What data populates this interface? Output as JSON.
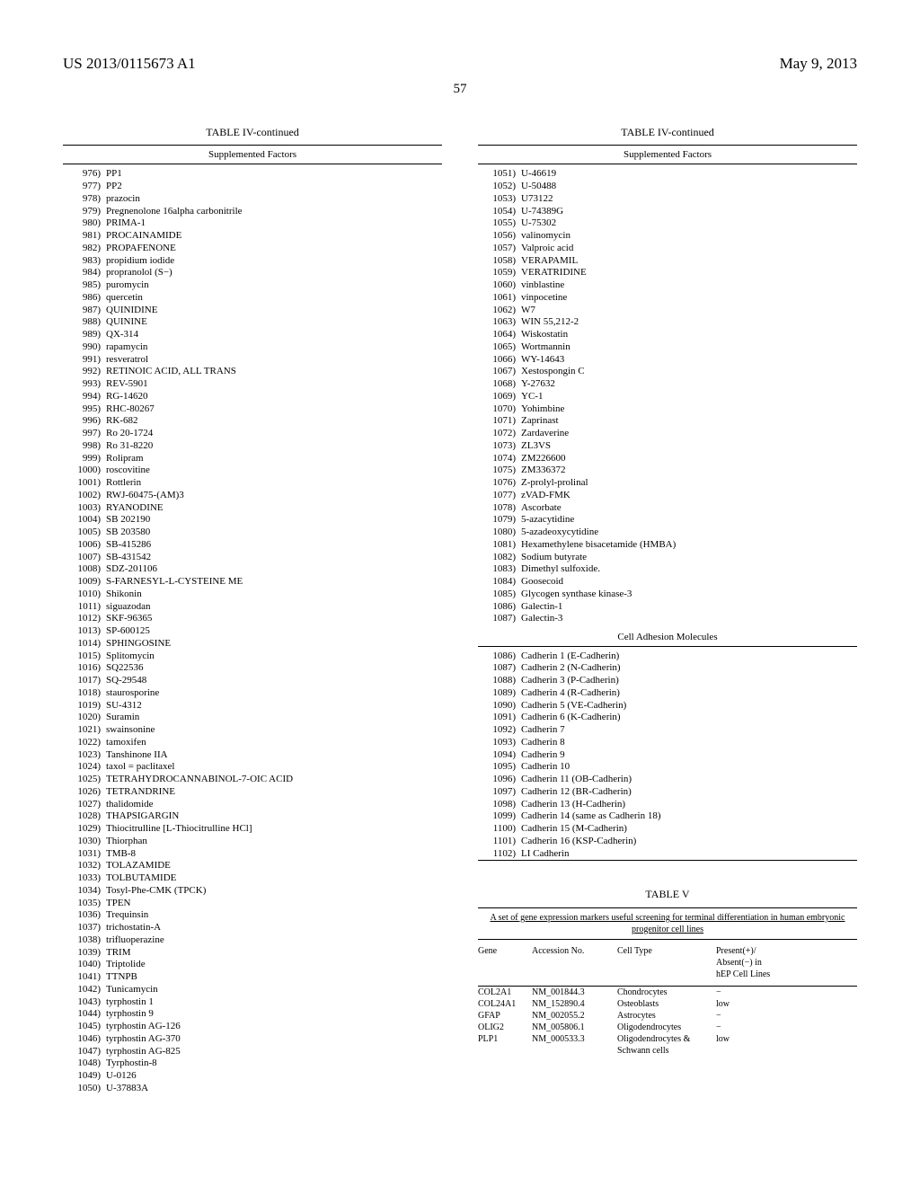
{
  "header": {
    "patent_no": "US 2013/0115673 A1",
    "date": "May 9, 2013",
    "page": "57"
  },
  "table4": {
    "title": "TABLE IV-continued",
    "subtitle": "Supplemented Factors",
    "subsection": "Cell Adhesion Molecules",
    "left": [
      {
        "n": "976)",
        "t": "PP1"
      },
      {
        "n": "977)",
        "t": "PP2"
      },
      {
        "n": "978)",
        "t": "prazocin"
      },
      {
        "n": "979)",
        "t": "Pregnenolone 16alpha carbonitrile"
      },
      {
        "n": "980)",
        "t": "PRIMA-1"
      },
      {
        "n": "981)",
        "t": "PROCAINAMIDE"
      },
      {
        "n": "982)",
        "t": "PROPAFENONE"
      },
      {
        "n": "983)",
        "t": "propidium iodide"
      },
      {
        "n": "984)",
        "t": "propranolol (S−)"
      },
      {
        "n": "985)",
        "t": "puromycin"
      },
      {
        "n": "986)",
        "t": "quercetin"
      },
      {
        "n": "987)",
        "t": "QUINIDINE"
      },
      {
        "n": "988)",
        "t": "QUININE"
      },
      {
        "n": "989)",
        "t": "QX-314"
      },
      {
        "n": "990)",
        "t": "rapamycin"
      },
      {
        "n": "991)",
        "t": "resveratrol"
      },
      {
        "n": "992)",
        "t": "RETINOIC ACID, ALL TRANS"
      },
      {
        "n": "993)",
        "t": "REV-5901"
      },
      {
        "n": "994)",
        "t": "RG-14620"
      },
      {
        "n": "995)",
        "t": "RHC-80267"
      },
      {
        "n": "996)",
        "t": "RK-682"
      },
      {
        "n": "997)",
        "t": "Ro 20-1724"
      },
      {
        "n": "998)",
        "t": "Ro 31-8220"
      },
      {
        "n": "999)",
        "t": "Rolipram"
      },
      {
        "n": "1000)",
        "t": "roscovitine"
      },
      {
        "n": "1001)",
        "t": "Rottlerin"
      },
      {
        "n": "1002)",
        "t": "RWJ-60475-(AM)3"
      },
      {
        "n": "1003)",
        "t": "RYANODINE"
      },
      {
        "n": "1004)",
        "t": "SB 202190"
      },
      {
        "n": "1005)",
        "t": "SB 203580"
      },
      {
        "n": "1006)",
        "t": "SB-415286"
      },
      {
        "n": "1007)",
        "t": "SB-431542"
      },
      {
        "n": "1008)",
        "t": "SDZ-201106"
      },
      {
        "n": "1009)",
        "t": "S-FARNESYL-L-CYSTEINE ME"
      },
      {
        "n": "1010)",
        "t": "Shikonin"
      },
      {
        "n": "1011)",
        "t": "siguazodan"
      },
      {
        "n": "1012)",
        "t": "SKF-96365"
      },
      {
        "n": "1013)",
        "t": "SP-600125"
      },
      {
        "n": "1014)",
        "t": "SPHINGOSINE"
      },
      {
        "n": "1015)",
        "t": "Splitomycin"
      },
      {
        "n": "1016)",
        "t": "SQ22536"
      },
      {
        "n": "1017)",
        "t": "SQ-29548"
      },
      {
        "n": "1018)",
        "t": "staurosporine"
      },
      {
        "n": "1019)",
        "t": "SU-4312"
      },
      {
        "n": "1020)",
        "t": "Suramin"
      },
      {
        "n": "1021)",
        "t": "swainsonine"
      },
      {
        "n": "1022)",
        "t": "tamoxifen"
      },
      {
        "n": "1023)",
        "t": "Tanshinone IIA"
      },
      {
        "n": "1024)",
        "t": "taxol = paclitaxel"
      },
      {
        "n": "1025)",
        "t": "TETRAHYDROCANNABINOL-7-OIC ACID"
      },
      {
        "n": "1026)",
        "t": "TETRANDRINE"
      },
      {
        "n": "1027)",
        "t": "thalidomide"
      },
      {
        "n": "1028)",
        "t": "THAPSIGARGIN"
      },
      {
        "n": "1029)",
        "t": "Thiocitrulline [L-Thiocitrulline HCl]"
      },
      {
        "n": "1030)",
        "t": "Thiorphan"
      },
      {
        "n": "1031)",
        "t": "TMB-8"
      },
      {
        "n": "1032)",
        "t": "TOLAZAMIDE"
      },
      {
        "n": "1033)",
        "t": "TOLBUTAMIDE"
      },
      {
        "n": "1034)",
        "t": "Tosyl-Phe-CMK (TPCK)"
      },
      {
        "n": "1035)",
        "t": "TPEN"
      },
      {
        "n": "1036)",
        "t": "Trequinsin"
      },
      {
        "n": "1037)",
        "t": "trichostatin-A"
      },
      {
        "n": "1038)",
        "t": "trifluoperazine"
      },
      {
        "n": "1039)",
        "t": "TRIM"
      },
      {
        "n": "1040)",
        "t": "Triptolide"
      },
      {
        "n": "1041)",
        "t": "TTNPB"
      },
      {
        "n": "1042)",
        "t": "Tunicamycin"
      },
      {
        "n": "1043)",
        "t": "tyrphostin 1"
      },
      {
        "n": "1044)",
        "t": "tyrphostin 9"
      },
      {
        "n": "1045)",
        "t": "tyrphostin AG-126"
      },
      {
        "n": "1046)",
        "t": "tyrphostin AG-370"
      },
      {
        "n": "1047)",
        "t": "tyrphostin AG-825"
      },
      {
        "n": "1048)",
        "t": "Tyrphostin-8"
      },
      {
        "n": "1049)",
        "t": "U-0126"
      },
      {
        "n": "1050)",
        "t": "U-37883A"
      }
    ],
    "right_a": [
      {
        "n": "1051)",
        "t": "U-46619"
      },
      {
        "n": "1052)",
        "t": "U-50488"
      },
      {
        "n": "1053)",
        "t": "U73122"
      },
      {
        "n": "1054)",
        "t": "U-74389G"
      },
      {
        "n": "1055)",
        "t": "U-75302"
      },
      {
        "n": "1056)",
        "t": "valinomycin"
      },
      {
        "n": "1057)",
        "t": "Valproic acid"
      },
      {
        "n": "1058)",
        "t": "VERAPAMIL"
      },
      {
        "n": "1059)",
        "t": "VERATRIDINE"
      },
      {
        "n": "1060)",
        "t": "vinblastine"
      },
      {
        "n": "1061)",
        "t": "vinpocetine"
      },
      {
        "n": "1062)",
        "t": "W7"
      },
      {
        "n": "1063)",
        "t": "WIN 55,212-2"
      },
      {
        "n": "1064)",
        "t": "Wiskostatin"
      },
      {
        "n": "1065)",
        "t": "Wortmannin"
      },
      {
        "n": "1066)",
        "t": "WY-14643"
      },
      {
        "n": "1067)",
        "t": "Xestospongin C"
      },
      {
        "n": "1068)",
        "t": "Y-27632"
      },
      {
        "n": "1069)",
        "t": "YC-1"
      },
      {
        "n": "1070)",
        "t": "Yohimbine"
      },
      {
        "n": "1071)",
        "t": "Zaprinast"
      },
      {
        "n": "1072)",
        "t": "Zardaverine"
      },
      {
        "n": "1073)",
        "t": "ZL3VS"
      },
      {
        "n": "1074)",
        "t": "ZM226600"
      },
      {
        "n": "1075)",
        "t": "ZM336372"
      },
      {
        "n": "1076)",
        "t": "Z-prolyl-prolinal"
      },
      {
        "n": "1077)",
        "t": "zVAD-FMK"
      },
      {
        "n": "1078)",
        "t": "Ascorbate"
      },
      {
        "n": "1079)",
        "t": "5-azacytidine"
      },
      {
        "n": "1080)",
        "t": "5-azadeoxycytidine"
      },
      {
        "n": "1081)",
        "t": "Hexamethylene bisacetamide (HMBA)"
      },
      {
        "n": "1082)",
        "t": "Sodium butyrate"
      },
      {
        "n": "1083)",
        "t": "Dimethyl sulfoxide."
      },
      {
        "n": "1084)",
        "t": "Goosecoid"
      },
      {
        "n": "1085)",
        "t": "Glycogen synthase kinase-3"
      },
      {
        "n": "1086)",
        "t": "Galectin-1"
      },
      {
        "n": "1087)",
        "t": "Galectin-3"
      }
    ],
    "right_b": [
      {
        "n": "1086)",
        "t": "Cadherin 1 (E-Cadherin)"
      },
      {
        "n": "1087)",
        "t": "Cadherin 2 (N-Cadherin)"
      },
      {
        "n": "1088)",
        "t": "Cadherin 3 (P-Cadherin)"
      },
      {
        "n": "1089)",
        "t": "Cadherin 4 (R-Cadherin)"
      },
      {
        "n": "1090)",
        "t": "Cadherin 5 (VE-Cadherin)"
      },
      {
        "n": "1091)",
        "t": "Cadherin 6 (K-Cadherin)"
      },
      {
        "n": "1092)",
        "t": "Cadherin 7"
      },
      {
        "n": "1093)",
        "t": "Cadherin 8"
      },
      {
        "n": "1094)",
        "t": "Cadherin 9"
      },
      {
        "n": "1095)",
        "t": "Cadherin 10"
      },
      {
        "n": "1096)",
        "t": "Cadherin 11 (OB-Cadherin)"
      },
      {
        "n": "1097)",
        "t": "Cadherin 12 (BR-Cadherin)"
      },
      {
        "n": "1098)",
        "t": "Cadherin 13 (H-Cadherin)"
      },
      {
        "n": "1099)",
        "t": "Cadherin 14 (same as Cadherin 18)"
      },
      {
        "n": "1100)",
        "t": "Cadherin 15 (M-Cadherin)"
      },
      {
        "n": "1101)",
        "t": "Cadherin 16 (KSP-Cadherin)"
      },
      {
        "n": "1102)",
        "t": "LI Cadherin"
      }
    ]
  },
  "table5": {
    "title": "TABLE V",
    "caption": "A set of gene expression markers useful screening for terminal differentiation in human embryonic progenitor cell lines",
    "head": {
      "c1": "Gene",
      "c2": "Accession No.",
      "c3": "Cell Type",
      "c4": "Present(+)/\nAbsent(−) in\nhEP Cell Lines"
    },
    "rows": [
      {
        "c1": "COL2A1",
        "c2": "NM_001844.3",
        "c3": "Chondrocytes",
        "c4": "−"
      },
      {
        "c1": "COL24A1",
        "c2": "NM_152890.4",
        "c3": "Osteoblasts",
        "c4": "low"
      },
      {
        "c1": "GFAP",
        "c2": "NM_002055.2",
        "c3": "Astrocytes",
        "c4": "−"
      },
      {
        "c1": "OLIG2",
        "c2": "NM_005806.1",
        "c3": "Oligodendrocytes",
        "c4": "−"
      },
      {
        "c1": "PLP1",
        "c2": "NM_000533.3",
        "c3": "Oligodendrocytes & Schwann cells",
        "c4": "low"
      }
    ]
  }
}
